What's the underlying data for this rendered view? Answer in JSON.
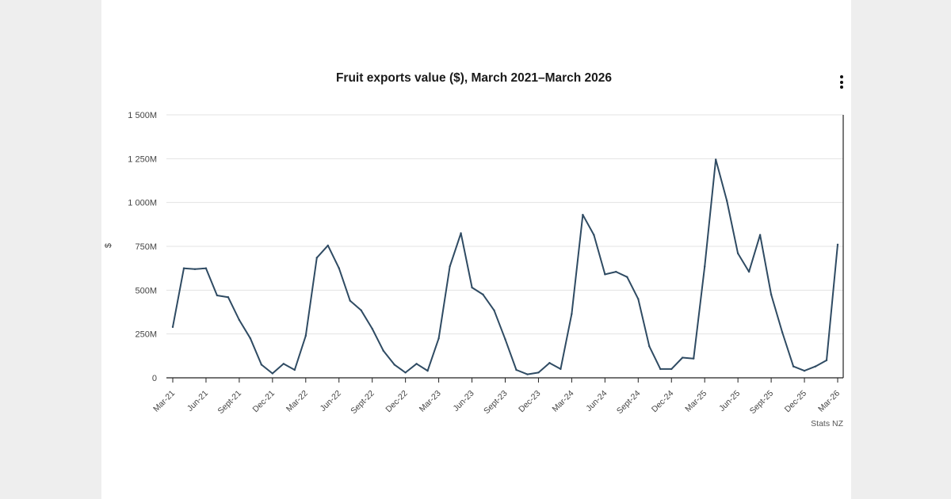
{
  "chart_data": {
    "type": "line",
    "title": "Fruit exports value ($), March 2021–March 2026",
    "ylabel": "$",
    "xlabel": "",
    "ylim": [
      0,
      1500000000
    ],
    "y_ticks": [
      0,
      250000000,
      500000000,
      750000000,
      1000000000,
      1250000000,
      1500000000
    ],
    "y_tick_labels": [
      "0",
      "250M",
      "500M",
      "750M",
      "1 000M",
      "1 250M",
      "1 500M"
    ],
    "x_tick_labels": [
      "Mar-21",
      "Jun-21",
      "Sept-21",
      "Dec-21",
      "Mar-22",
      "Jun-22",
      "Sept-22",
      "Dec-22",
      "Mar-23",
      "Jun-23",
      "Sept-23",
      "Dec-23",
      "Mar-24",
      "Jun-24",
      "Sept-24",
      "Dec-24",
      "Mar-25",
      "Jun-25",
      "Sept-25",
      "Dec-25",
      "Mar-26"
    ],
    "grid": "horizontal",
    "line_color": "#2f4b63",
    "x": [
      "2021-03",
      "2021-04",
      "2021-05",
      "2021-06",
      "2021-07",
      "2021-08",
      "2021-09",
      "2021-10",
      "2021-11",
      "2021-12",
      "2022-01",
      "2022-02",
      "2022-03",
      "2022-04",
      "2022-05",
      "2022-06",
      "2022-07",
      "2022-08",
      "2022-09",
      "2022-10",
      "2022-11",
      "2022-12",
      "2023-01",
      "2023-02",
      "2023-03",
      "2023-04",
      "2023-05",
      "2023-06",
      "2023-07",
      "2023-08",
      "2023-09",
      "2023-10",
      "2023-11",
      "2023-12",
      "2024-01",
      "2024-02",
      "2024-03",
      "2024-04",
      "2024-05",
      "2024-06",
      "2024-07",
      "2024-08",
      "2024-09",
      "2024-10",
      "2024-11",
      "2024-12",
      "2025-01",
      "2025-02",
      "2025-03",
      "2025-04",
      "2025-05",
      "2025-06",
      "2025-07",
      "2025-08",
      "2025-09",
      "2025-10",
      "2025-11",
      "2025-12",
      "2026-01",
      "2026-02",
      "2026-03"
    ],
    "series": [
      {
        "values": [
          290000000,
          625000000,
          620000000,
          625000000,
          470000000,
          460000000,
          330000000,
          225000000,
          75000000,
          25000000,
          80000000,
          45000000,
          240000000,
          685000000,
          755000000,
          625000000,
          440000000,
          385000000,
          280000000,
          155000000,
          75000000,
          30000000,
          80000000,
          40000000,
          225000000,
          635000000,
          825000000,
          515000000,
          475000000,
          385000000,
          220000000,
          45000000,
          20000000,
          30000000,
          85000000,
          50000000,
          365000000,
          930000000,
          815000000,
          590000000,
          605000000,
          575000000,
          450000000,
          180000000,
          50000000,
          50000000,
          115000000,
          110000000,
          635000000,
          1245000000,
          1010000000,
          710000000,
          605000000,
          815000000,
          475000000,
          260000000,
          65000000,
          40000000,
          65000000,
          100000000,
          760000000
        ]
      }
    ]
  },
  "credit": "Stats NZ",
  "menu_icon": "kebab-menu-icon"
}
